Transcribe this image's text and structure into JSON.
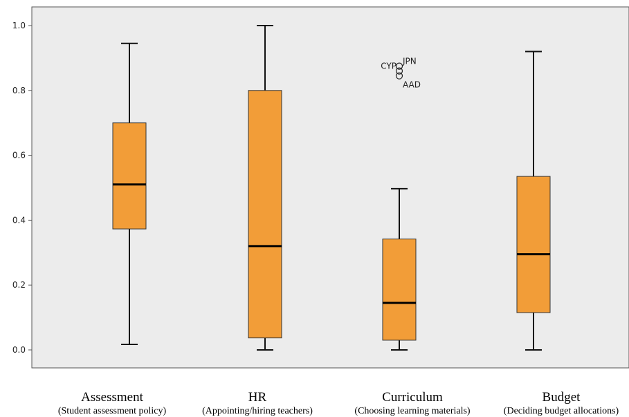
{
  "chart_data": {
    "type": "box",
    "title": "",
    "xlabel": "",
    "ylabel": "",
    "ylim": [
      0,
      1.0
    ],
    "yticks": [
      0.0,
      0.2,
      0.4,
      0.6,
      0.8,
      1.0
    ],
    "ytick_labels": [
      "0.0",
      "0.2",
      "0.4",
      "0.6",
      "0.8",
      "1.0"
    ],
    "grid": false,
    "plot_background": "#ececec",
    "box_color": "#f29d38",
    "categories": [
      {
        "label": "Assessment",
        "sublabel": "(Student assessment policy)",
        "whisker_low": 0.017,
        "q1": 0.373,
        "median": 0.51,
        "q3": 0.7,
        "whisker_high": 0.945,
        "outliers": []
      },
      {
        "label": "HR",
        "sublabel": "(Appointing/hiring teachers)",
        "whisker_low": 0.0,
        "q1": 0.037,
        "median": 0.32,
        "q3": 0.8,
        "whisker_high": 1.0,
        "outliers": []
      },
      {
        "label": "Curriculum",
        "sublabel": "(Choosing learning materials)",
        "whisker_low": 0.0,
        "q1": 0.03,
        "median": 0.145,
        "q3": 0.342,
        "whisker_high": 0.497,
        "outliers": [
          {
            "name": "JPN",
            "value": 0.86
          },
          {
            "name": "CYP",
            "value": 0.875
          },
          {
            "name": "AAD",
            "value": 0.845
          }
        ]
      },
      {
        "label": "Budget",
        "sublabel": "(Deciding budget allocations)",
        "whisker_low": 0.0,
        "q1": 0.115,
        "median": 0.295,
        "q3": 0.535,
        "whisker_high": 0.92,
        "outliers": []
      }
    ]
  }
}
